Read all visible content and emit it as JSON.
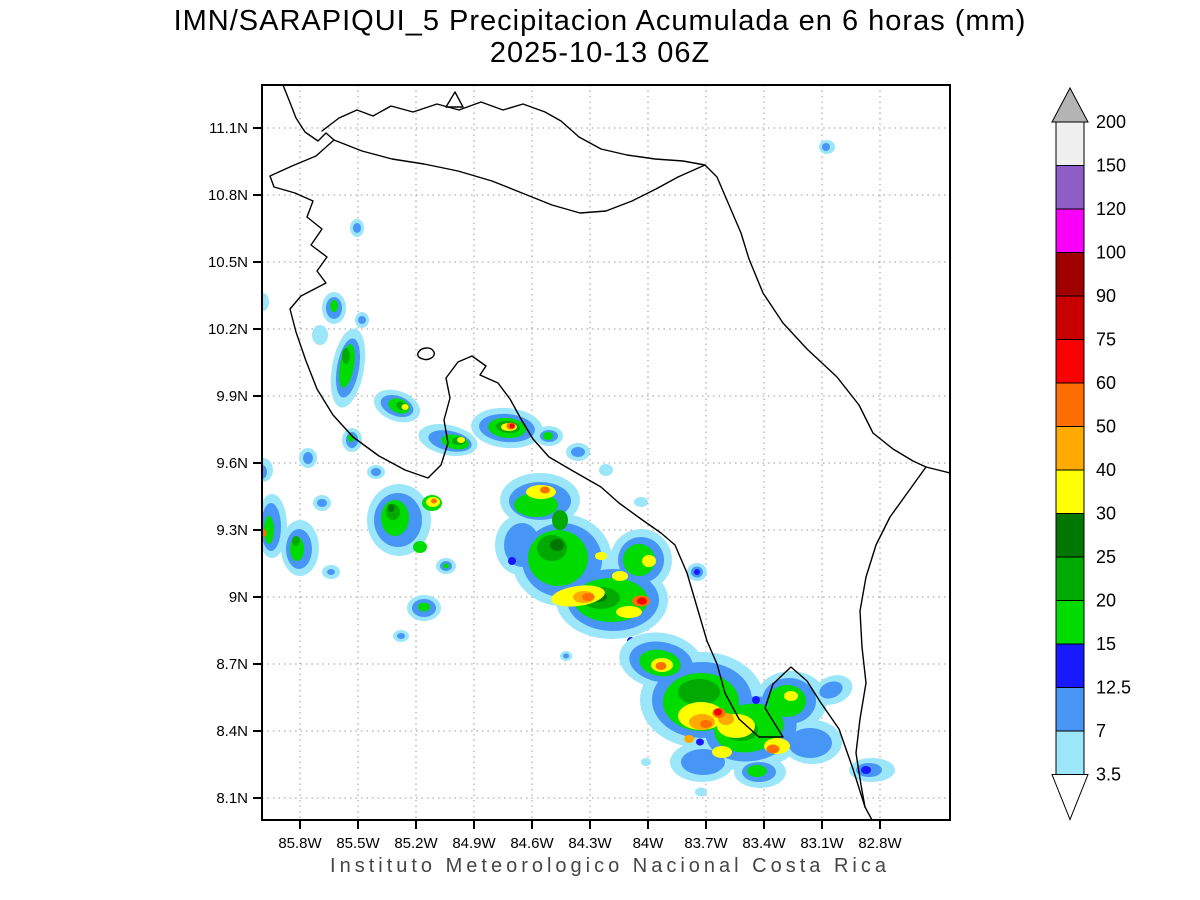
{
  "title": {
    "line1": "IMN/SARAPIQUI_5 Precipitacion Acumulada en 6 horas (mm)",
    "line2": "2025-10-13 06Z"
  },
  "footer": "Instituto Meteorologico Nacional Costa Rica",
  "axes": {
    "lat_ticks": [
      "11.1N",
      "10.8N",
      "10.5N",
      "10.2N",
      "9.9N",
      "9.6N",
      "9.3N",
      "9N",
      "8.7N",
      "8.4N",
      "8.1N"
    ],
    "lon_ticks": [
      "85.8W",
      "85.5W",
      "85.2W",
      "84.9W",
      "84.6W",
      "84.3W",
      "84W",
      "83.7W",
      "83.4W",
      "83.1W",
      "82.8W"
    ]
  },
  "colorbar": {
    "labels": [
      "200",
      "150",
      "120",
      "100",
      "90",
      "75",
      "60",
      "50",
      "40",
      "30",
      "25",
      "20",
      "15",
      "12.5",
      "7",
      "3.5"
    ],
    "cell_colors": [
      "#F0F0F0",
      "#8E5EC6",
      "#FA00FA",
      "#A00000",
      "#C80000",
      "#FA0000",
      "#FF6E00",
      "#FFAA00",
      "#FFFF00",
      "#007800",
      "#00AA00",
      "#00DC00",
      "#1919FF",
      "#4796F5",
      "#9BE6F8"
    ],
    "above_color": "#B4B4B4",
    "below_color": "#FFFFFF"
  },
  "map": {
    "palette": {
      "c": "#9BE6F8",
      "b": "#4796F5",
      "db": "#1919FF",
      "g1": "#00DC00",
      "g2": "#00AA00",
      "g3": "#007800",
      "y": "#FFFF00",
      "a": "#FFAA00",
      "o": "#FF6E00",
      "r": "#FA0000",
      "dr": "#C80000"
    },
    "coastlines": [
      "M283,85 L289,100 L296,118 L305,132 L318,141 L326,133 L334,140 L316,156 L292,166 L270,176 L274,187 L295,193 L313,201 L307,217 L322,229 L311,245 L327,257 L317,271 L326,283 L301,296 L290,309 L296,332 L306,361 L317,389 L333,415 L353,437 L379,456 L405,470 L428,478 L441,465 L448,443 L444,420 L450,398 L446,378 L458,362 L472,356 L486,366 L480,375 L498,383 L510,399 L521,419 L533,439 L549,457 L573,471 L601,487 L619,503 L641,519 L661,533 L675,545 L687,573 L697,607 L707,641 L717,664 L725,693 L739,719 L759,737 L783,737 L765,708 L773,684 L791,667 L807,681 L821,703 L839,729 L853,769 L865,807 L872,820",
      "M322,131 L339,118 L357,110 L373,116 L391,106 L413,112 L437,104 L459,110 L481,102 L503,110 L523,104 L545,112 L561,121 L579,137 L601,149 L627,155 L655,159 L683,161 L705,165 L717,177 L729,205 L741,233 L749,259 L763,293 L783,323 L807,349 L837,377 L859,405 L873,433 L893,449 L913,461 L926,467 L950,473",
      "M446,107 L455,92 L463,107 Z",
      "M334,140 L362,151 L392,159 L424,164 L458,171 L492,181 L522,193 L552,205 L580,213 L606,211 L632,201 L656,189 L678,177 L705,165",
      "M926,467 L908,492 L890,517 L876,545 L866,577 L860,611 L862,647 L866,683 L860,719 L856,753 L861,785 L865,807",
      "M418,353 C421,347 431,346 434,352 C436,357 428,361 423,359 C419,358 417,356 418,353 Z"
    ],
    "precip_cells": [
      [
        357,
        228,
        7,
        9,
        0,
        "c"
      ],
      [
        357,
        228,
        4,
        5,
        0,
        "b"
      ],
      [
        827,
        147,
        8,
        7,
        0,
        "c"
      ],
      [
        826,
        147,
        4,
        4,
        0,
        "b"
      ],
      [
        334,
        308,
        12,
        16,
        0,
        "c"
      ],
      [
        334,
        308,
        8,
        11,
        0,
        "b"
      ],
      [
        334,
        306,
        4,
        6,
        0,
        "g1"
      ],
      [
        348,
        368,
        16,
        40,
        10,
        "c"
      ],
      [
        348,
        368,
        11,
        30,
        10,
        "b"
      ],
      [
        347,
        366,
        7,
        22,
        10,
        "g1"
      ],
      [
        346,
        356,
        4,
        8,
        0,
        "g2"
      ],
      [
        320,
        335,
        8,
        10,
        0,
        "c"
      ],
      [
        362,
        320,
        7,
        8,
        0,
        "c"
      ],
      [
        362,
        320,
        4,
        4,
        0,
        "b"
      ],
      [
        263,
        302,
        6,
        9,
        0,
        "c"
      ],
      [
        352,
        440,
        10,
        12,
        0,
        "c"
      ],
      [
        352,
        440,
        6,
        8,
        0,
        "b"
      ],
      [
        351,
        438,
        3,
        4,
        0,
        "g1"
      ],
      [
        308,
        458,
        9,
        10,
        0,
        "c"
      ],
      [
        308,
        458,
        5,
        6,
        0,
        "b"
      ],
      [
        397,
        406,
        24,
        15,
        20,
        "c"
      ],
      [
        397,
        406,
        17,
        10,
        20,
        "b"
      ],
      [
        399,
        406,
        11,
        7,
        20,
        "g1"
      ],
      [
        402,
        406,
        6,
        4,
        20,
        "g2"
      ],
      [
        405,
        407,
        3.5,
        3,
        0,
        "y"
      ],
      [
        448,
        440,
        30,
        15,
        12,
        "c"
      ],
      [
        450,
        441,
        22,
        10,
        12,
        "b"
      ],
      [
        455,
        442,
        14,
        7,
        12,
        "g1"
      ],
      [
        459,
        441,
        7,
        4,
        0,
        "g2"
      ],
      [
        461,
        440,
        4,
        3,
        0,
        "y"
      ],
      [
        507,
        428,
        36,
        20,
        5,
        "c"
      ],
      [
        507,
        428,
        28,
        14,
        5,
        "b"
      ],
      [
        507,
        428,
        19,
        10,
        5,
        "g1"
      ],
      [
        508,
        427,
        12,
        6,
        5,
        "g2"
      ],
      [
        509,
        427,
        8,
        4,
        0,
        "y"
      ],
      [
        511,
        426,
        4.5,
        3.5,
        0,
        "o"
      ],
      [
        512,
        426,
        2.5,
        2.5,
        0,
        "r"
      ],
      [
        549,
        436,
        14,
        10,
        0,
        "c"
      ],
      [
        549,
        436,
        9,
        6,
        0,
        "b"
      ],
      [
        548,
        436,
        5,
        4,
        0,
        "g1"
      ],
      [
        578,
        452,
        12,
        9,
        0,
        "c"
      ],
      [
        578,
        452,
        7,
        5,
        0,
        "b"
      ],
      [
        606,
        470,
        7,
        6,
        0,
        "c"
      ],
      [
        263,
        470,
        10,
        12,
        0,
        "c"
      ],
      [
        262,
        472,
        5,
        7,
        0,
        "b"
      ],
      [
        272,
        526,
        15,
        32,
        0,
        "c"
      ],
      [
        271,
        527,
        10,
        24,
        0,
        "b"
      ],
      [
        269,
        530,
        5,
        14,
        0,
        "g1"
      ],
      [
        263,
        533,
        3.5,
        4,
        0,
        "o"
      ],
      [
        300,
        548,
        19,
        28,
        0,
        "c"
      ],
      [
        299,
        549,
        13,
        20,
        0,
        "b"
      ],
      [
        297,
        549,
        7,
        12,
        0,
        "g1"
      ],
      [
        296,
        541,
        4,
        5,
        0,
        "g2"
      ],
      [
        322,
        503,
        9,
        8,
        0,
        "c"
      ],
      [
        322,
        503,
        5,
        4,
        0,
        "b"
      ],
      [
        331,
        572,
        9,
        7,
        0,
        "c"
      ],
      [
        331,
        572,
        4,
        3,
        0,
        "b"
      ],
      [
        399,
        520,
        32,
        36,
        0,
        "c"
      ],
      [
        398,
        520,
        24,
        27,
        0,
        "b"
      ],
      [
        395,
        518,
        14,
        18,
        0,
        "g1"
      ],
      [
        393,
        512,
        7,
        8,
        0,
        "g2"
      ],
      [
        391,
        508,
        3.5,
        4,
        0,
        "g3"
      ],
      [
        432,
        503,
        10,
        8,
        0,
        "g1"
      ],
      [
        433,
        502,
        7,
        5,
        0,
        "y"
      ],
      [
        434,
        501,
        3,
        2.5,
        0,
        "o"
      ],
      [
        420,
        547,
        7,
        6,
        0,
        "g1"
      ],
      [
        376,
        472,
        9,
        7,
        0,
        "c"
      ],
      [
        376,
        472,
        5,
        4,
        0,
        "b"
      ],
      [
        446,
        566,
        10,
        8,
        0,
        "c"
      ],
      [
        446,
        566,
        6,
        5,
        0,
        "b"
      ],
      [
        446,
        566,
        3,
        2.5,
        0,
        "g1"
      ],
      [
        424,
        608,
        17,
        13,
        0,
        "c"
      ],
      [
        424,
        608,
        12,
        9,
        0,
        "b"
      ],
      [
        424,
        607,
        6,
        4.5,
        0,
        "g1"
      ],
      [
        401,
        636,
        8,
        6,
        0,
        "c"
      ],
      [
        401,
        636,
        4,
        3,
        0,
        "b"
      ],
      [
        540,
        500,
        40,
        27,
        0,
        "c"
      ],
      [
        562,
        560,
        50,
        46,
        0,
        "c"
      ],
      [
        612,
        600,
        56,
        39,
        0,
        "c"
      ],
      [
        641,
        560,
        31,
        31,
        0,
        "c"
      ],
      [
        520,
        545,
        25,
        30,
        0,
        "c"
      ],
      [
        540,
        501,
        31,
        19,
        0,
        "b"
      ],
      [
        562,
        560,
        40,
        37,
        0,
        "b"
      ],
      [
        613,
        600,
        46,
        31,
        0,
        "b"
      ],
      [
        641,
        560,
        23,
        23,
        0,
        "b"
      ],
      [
        522,
        545,
        18,
        22,
        0,
        "b"
      ],
      [
        536,
        505,
        22,
        12,
        0,
        "g1"
      ],
      [
        558,
        558,
        30,
        28,
        0,
        "g1"
      ],
      [
        611,
        600,
        37,
        22,
        0,
        "g1"
      ],
      [
        639,
        560,
        16,
        16,
        0,
        "g1"
      ],
      [
        552,
        548,
        15,
        13,
        0,
        "g2"
      ],
      [
        601,
        598,
        19,
        11,
        0,
        "g2"
      ],
      [
        560,
        520,
        8,
        10,
        0,
        "g2"
      ],
      [
        557,
        545,
        7,
        6,
        0,
        "g3"
      ],
      [
        598,
        597,
        9,
        5,
        0,
        "g3"
      ],
      [
        541,
        492,
        15,
        7,
        0,
        "y"
      ],
      [
        578,
        596,
        27,
        10,
        -8,
        "y"
      ],
      [
        629,
        612,
        13,
        6,
        0,
        "y"
      ],
      [
        649,
        561,
        7,
        6,
        0,
        "y"
      ],
      [
        601,
        556,
        6,
        4,
        0,
        "y"
      ],
      [
        620,
        576,
        8,
        5,
        0,
        "y"
      ],
      [
        545,
        490,
        5,
        3.5,
        0,
        "o"
      ],
      [
        584,
        597,
        11,
        6,
        0,
        "a"
      ],
      [
        588,
        597,
        6,
        4,
        0,
        "o"
      ],
      [
        641,
        601,
        9,
        5.5,
        0,
        "o"
      ],
      [
        642,
        601,
        5,
        3.5,
        0,
        "r"
      ],
      [
        512,
        561,
        4,
        4,
        0,
        "db"
      ],
      [
        631,
        641,
        4,
        4,
        0,
        "db"
      ],
      [
        697,
        572,
        10,
        9,
        0,
        "c"
      ],
      [
        697,
        572,
        6,
        5.5,
        0,
        "b"
      ],
      [
        697,
        572,
        3,
        3,
        0,
        "db"
      ],
      [
        641,
        502,
        7,
        5,
        0,
        "c"
      ],
      [
        566,
        656,
        6,
        5,
        0,
        "c"
      ],
      [
        566,
        656,
        3,
        2.5,
        0,
        "b"
      ],
      [
        661,
        661,
        42,
        28,
        10,
        "c"
      ],
      [
        702,
        700,
        62,
        48,
        0,
        "c"
      ],
      [
        752,
        730,
        56,
        40,
        -10,
        "c"
      ],
      [
        791,
        701,
        36,
        30,
        0,
        "c"
      ],
      [
        812,
        742,
        30,
        22,
        0,
        "c"
      ],
      [
        833,
        690,
        20,
        14,
        -20,
        "c"
      ],
      [
        702,
        762,
        32,
        20,
        0,
        "c"
      ],
      [
        760,
        772,
        26,
        16,
        0,
        "c"
      ],
      [
        661,
        662,
        32,
        20,
        10,
        "b"
      ],
      [
        702,
        700,
        50,
        38,
        0,
        "b"
      ],
      [
        751,
        729,
        46,
        32,
        -10,
        "b"
      ],
      [
        789,
        701,
        27,
        23,
        0,
        "b"
      ],
      [
        810,
        743,
        22,
        15,
        0,
        "b"
      ],
      [
        831,
        690,
        12,
        8,
        -20,
        "b"
      ],
      [
        703,
        762,
        22,
        13,
        0,
        "b"
      ],
      [
        759,
        772,
        17,
        10,
        0,
        "b"
      ],
      [
        660,
        663,
        21,
        13,
        10,
        "g1"
      ],
      [
        701,
        702,
        38,
        29,
        0,
        "g1"
      ],
      [
        749,
        728,
        35,
        24,
        -10,
        "g1"
      ],
      [
        787,
        701,
        19,
        16,
        0,
        "g1"
      ],
      [
        757,
        771,
        10,
        6,
        0,
        "g1"
      ],
      [
        699,
        692,
        21,
        13,
        0,
        "g2"
      ],
      [
        741,
        730,
        17,
        11,
        0,
        "g2"
      ],
      [
        709,
        718,
        14,
        10,
        0,
        "g2"
      ],
      [
        705,
        712,
        8,
        6,
        0,
        "g3"
      ],
      [
        735,
        728,
        8,
        5,
        0,
        "g3"
      ],
      [
        662,
        665,
        11,
        7,
        0,
        "y"
      ],
      [
        701,
        716,
        23,
        14,
        0,
        "y"
      ],
      [
        736,
        726,
        19,
        12,
        0,
        "y"
      ],
      [
        777,
        746,
        13,
        8,
        0,
        "y"
      ],
      [
        791,
        696,
        7,
        5,
        0,
        "y"
      ],
      [
        722,
        752,
        10,
        6,
        0,
        "y"
      ],
      [
        661,
        666,
        5.5,
        4,
        0,
        "o"
      ],
      [
        702,
        722,
        13,
        8,
        0,
        "a"
      ],
      [
        726,
        719,
        8,
        6,
        0,
        "a"
      ],
      [
        706,
        724,
        6,
        4,
        0,
        "o"
      ],
      [
        773,
        749,
        6.5,
        4.5,
        0,
        "o"
      ],
      [
        689,
        739,
        5,
        4,
        0,
        "a"
      ],
      [
        719,
        713,
        6.5,
        5,
        0,
        "o"
      ],
      [
        718,
        712,
        4,
        3.5,
        0,
        "r"
      ],
      [
        756,
        700,
        4,
        4,
        0,
        "db"
      ],
      [
        700,
        742,
        4,
        3.5,
        0,
        "db"
      ],
      [
        872,
        770,
        23,
        12,
        0,
        "c"
      ],
      [
        869,
        770,
        13,
        7,
        0,
        "b"
      ],
      [
        866,
        770,
        5,
        4,
        0,
        "db"
      ],
      [
        701,
        792,
        6,
        4.5,
        0,
        "c"
      ],
      [
        646,
        762,
        5,
        4,
        0,
        "c"
      ]
    ]
  }
}
